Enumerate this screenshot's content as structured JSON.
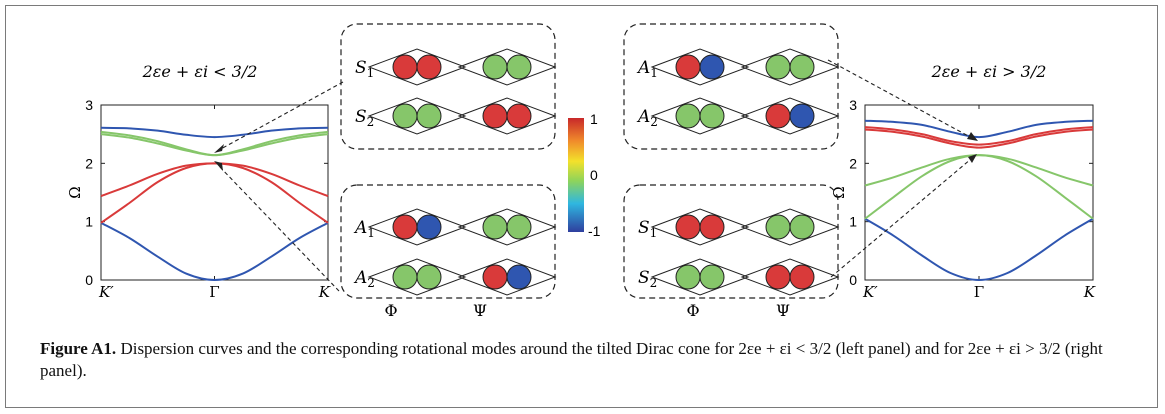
{
  "figure": {
    "caption": {
      "label": "Figure A1.",
      "text": "Dispersion curves and the corresponding rotational modes around the tilted Dirac cone for 2εe + εi < 3/2 (left panel) and for 2εe + εi > 3/2 (right panel)."
    },
    "colors": {
      "red": "#d93a3a",
      "green": "#86c66a",
      "blue": "#2f56b0",
      "panel_border": "#222222"
    },
    "colorbar": {
      "ticks": [
        "1",
        "0",
        "-1"
      ],
      "stops": [
        "#2f3f9e",
        "#2fb7e0",
        "#8fd45a",
        "#f3e12b",
        "#f08a2b",
        "#c8282a"
      ]
    },
    "mode_column_labels": [
      "Φ",
      "Ψ"
    ],
    "mode_panels": [
      {
        "id": "left-top",
        "rows": [
          {
            "label": "S1",
            "phi": [
              "red",
              "red"
            ],
            "psi": [
              "green",
              "green"
            ]
          },
          {
            "label": "S2",
            "phi": [
              "green",
              "green"
            ],
            "psi": [
              "red",
              "red"
            ]
          }
        ]
      },
      {
        "id": "left-bottom",
        "rows": [
          {
            "label": "A1",
            "phi": [
              "red",
              "blue"
            ],
            "psi": [
              "green",
              "green"
            ]
          },
          {
            "label": "A2",
            "phi": [
              "green",
              "green"
            ],
            "psi": [
              "red",
              "blue"
            ]
          }
        ]
      },
      {
        "id": "right-top",
        "rows": [
          {
            "label": "A1",
            "phi": [
              "red",
              "blue"
            ],
            "psi": [
              "green",
              "green"
            ]
          },
          {
            "label": "A2",
            "phi": [
              "green",
              "green"
            ],
            "psi": [
              "red",
              "blue"
            ]
          }
        ]
      },
      {
        "id": "right-bottom",
        "rows": [
          {
            "label": "S1",
            "phi": [
              "red",
              "red"
            ],
            "psi": [
              "green",
              "green"
            ]
          },
          {
            "label": "S2",
            "phi": [
              "green",
              "green"
            ],
            "psi": [
              "red",
              "red"
            ]
          }
        ]
      }
    ]
  },
  "chart_data": [
    {
      "type": "line",
      "panel": "left",
      "title": "2εe + εi < 3/2",
      "ylabel": "Ω",
      "ylim": [
        0,
        3
      ],
      "yticks": [
        "0",
        "1",
        "2",
        "3"
      ],
      "xticks": [
        "K′",
        "Γ",
        "K"
      ],
      "x": [
        -1,
        -0.75,
        -0.5,
        -0.25,
        0,
        0.25,
        0.5,
        0.75,
        1
      ],
      "series": [
        {
          "color": "blue",
          "values": [
            0.98,
            0.72,
            0.4,
            0.11,
            0.0,
            0.11,
            0.4,
            0.72,
            0.98
          ]
        },
        {
          "color": "red",
          "values": [
            0.98,
            1.32,
            1.68,
            1.92,
            2.0,
            1.92,
            1.68,
            1.32,
            0.98
          ]
        },
        {
          "color": "red",
          "values": [
            1.44,
            1.62,
            1.82,
            1.96,
            2.0,
            1.96,
            1.82,
            1.62,
            1.44
          ]
        },
        {
          "color": "green",
          "values": [
            2.5,
            2.44,
            2.34,
            2.22,
            2.14,
            2.22,
            2.34,
            2.44,
            2.5
          ]
        },
        {
          "color": "green",
          "values": [
            2.54,
            2.48,
            2.38,
            2.24,
            2.14,
            2.24,
            2.38,
            2.48,
            2.54
          ]
        },
        {
          "color": "blue",
          "values": [
            2.61,
            2.6,
            2.56,
            2.49,
            2.45,
            2.49,
            2.56,
            2.6,
            2.61
          ]
        }
      ]
    },
    {
      "type": "line",
      "panel": "right",
      "title": "2εe + εi > 3/2",
      "ylabel": "Ω",
      "ylim": [
        0,
        3
      ],
      "yticks": [
        "0",
        "1",
        "2",
        "3"
      ],
      "xticks": [
        "K′",
        "Γ",
        "K"
      ],
      "x": [
        -1,
        -0.75,
        -0.5,
        -0.25,
        0,
        0.25,
        0.5,
        0.75,
        1
      ],
      "series": [
        {
          "color": "blue",
          "values": [
            1.05,
            0.76,
            0.42,
            0.12,
            0.0,
            0.12,
            0.42,
            0.76,
            1.05
          ]
        },
        {
          "color": "green",
          "values": [
            1.05,
            1.42,
            1.78,
            2.04,
            2.14,
            2.04,
            1.78,
            1.42,
            1.05
          ]
        },
        {
          "color": "green",
          "values": [
            1.62,
            1.76,
            1.93,
            2.08,
            2.14,
            2.08,
            1.93,
            1.76,
            1.62
          ]
        },
        {
          "color": "red",
          "values": [
            2.58,
            2.54,
            2.46,
            2.34,
            2.27,
            2.34,
            2.46,
            2.54,
            2.58
          ]
        },
        {
          "color": "red",
          "values": [
            2.62,
            2.58,
            2.5,
            2.38,
            2.32,
            2.38,
            2.5,
            2.58,
            2.62
          ]
        },
        {
          "color": "blue",
          "values": [
            2.73,
            2.71,
            2.66,
            2.54,
            2.45,
            2.54,
            2.66,
            2.71,
            2.73
          ]
        }
      ]
    }
  ]
}
